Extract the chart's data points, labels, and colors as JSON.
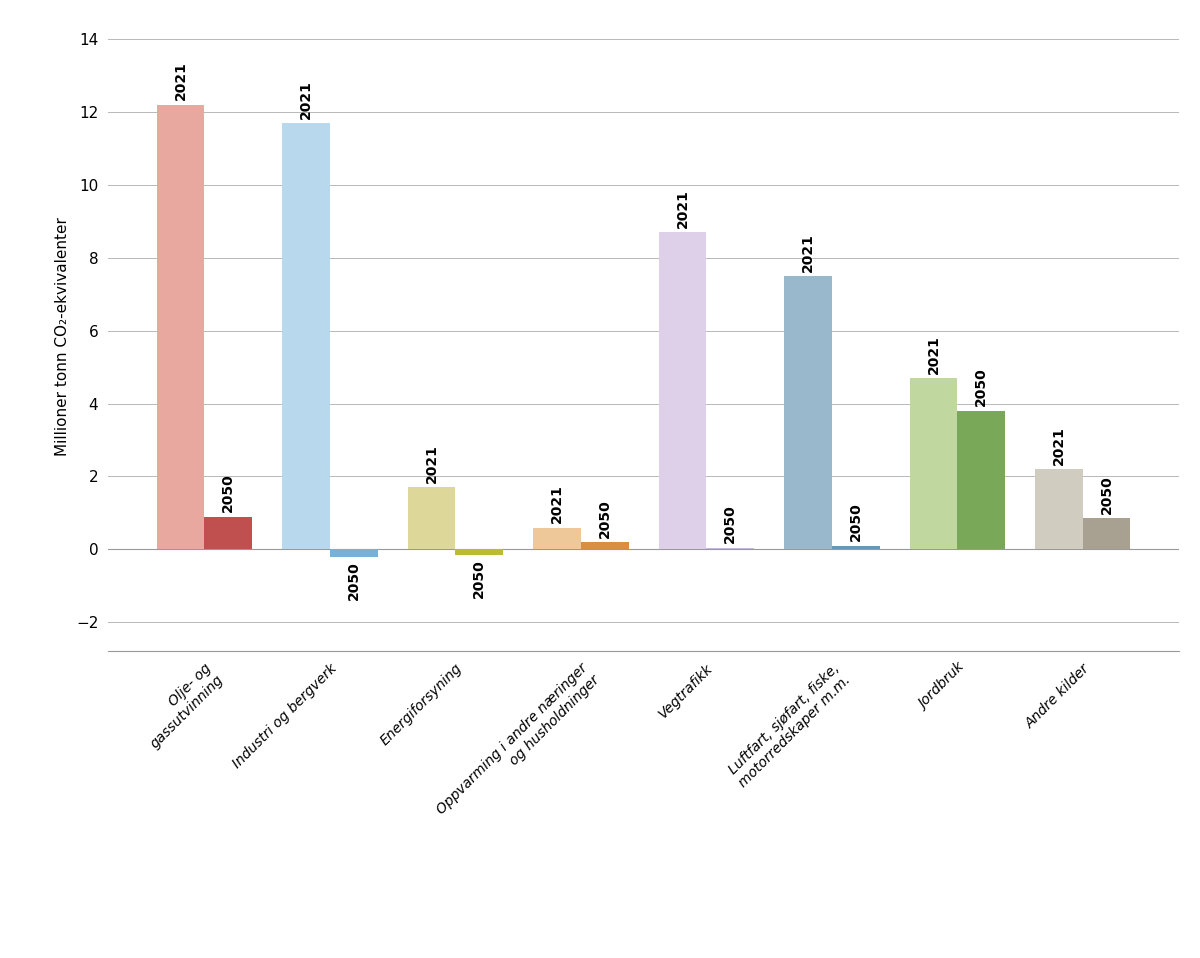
{
  "categories": [
    "Olje- og\ngassutvinning",
    "Industri og bergverk",
    "Energiforsyning",
    "Oppvarming i andre næringer\nog husholdninger",
    "Vegtrafikk",
    "Luftfart, sjøfart, fiske,\nmotorredskaper m.m.",
    "Jordbruk",
    "Andre kilder"
  ],
  "values_2021": [
    12.2,
    11.7,
    1.7,
    0.6,
    8.7,
    7.5,
    4.7,
    2.2
  ],
  "values_2050": [
    0.9,
    -0.2,
    -0.15,
    0.2,
    0.05,
    0.1,
    3.8,
    0.85
  ],
  "colors_2021": [
    "#e8a8a0",
    "#b8d8ee",
    "#ddd89a",
    "#eec898",
    "#ddd0e8",
    "#9ab8cc",
    "#c0d8a0",
    "#d0ccc0"
  ],
  "colors_2050": [
    "#c05050",
    "#78b0d8",
    "#bcbc30",
    "#d89040",
    "#c8b8d8",
    "#6898b8",
    "#78a858",
    "#a8a090"
  ],
  "ylabel": "Millioner tonn CO₂-ekvivalenter",
  "ylim": [
    -2.8,
    14.5
  ],
  "yticks": [
    -2,
    0,
    2,
    4,
    6,
    8,
    10,
    12,
    14
  ],
  "bar_width": 0.38,
  "label_2021": "2021",
  "label_2050": "2050",
  "background_color": "#ffffff",
  "grid_color": "#b8b8b8",
  "spine_color": "#999999"
}
